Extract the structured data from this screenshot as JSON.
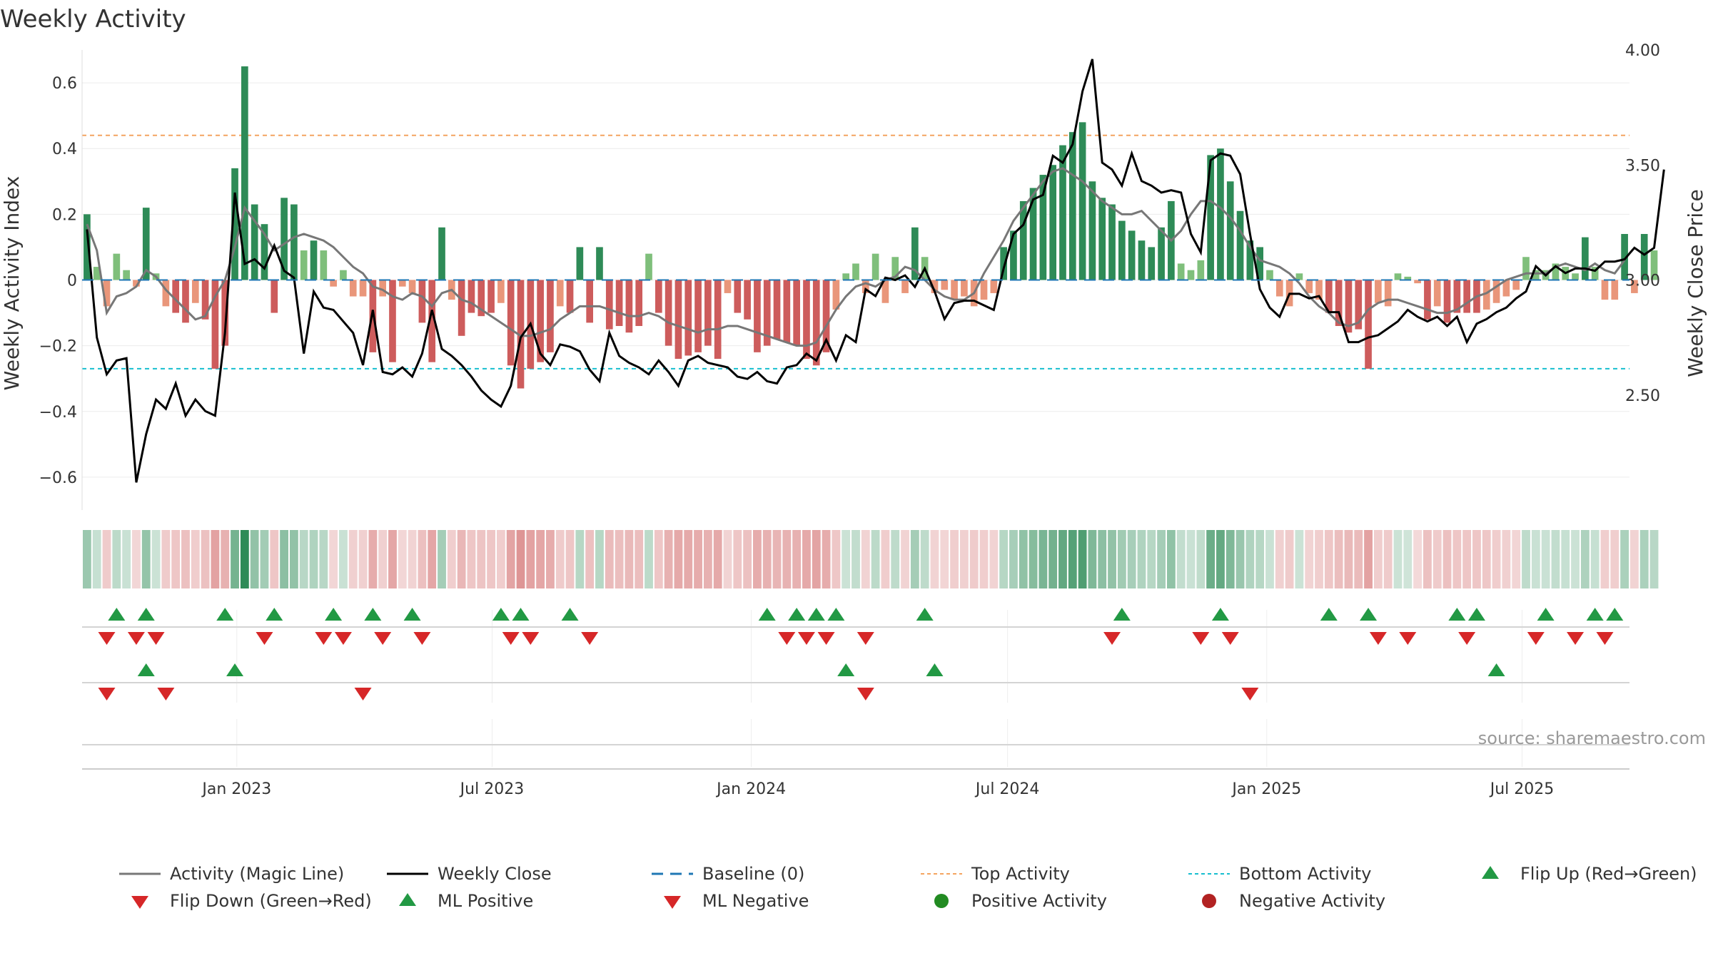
{
  "chart_data": {
    "type": "bar",
    "title": "Weekly Activity",
    "ylabel": "Weekly Activity Index",
    "y2label": "Weekly Close Price",
    "ylim": [
      -0.7,
      0.7
    ],
    "y2lim": [
      2.0,
      4.0
    ],
    "yticks": [
      0.6,
      0.4,
      0.2,
      0,
      -0.2,
      -0.4,
      -0.6
    ],
    "yticklabels": [
      "0.6",
      "0.4",
      "0.2",
      "0",
      "−0.2",
      "−0.4",
      "−0.6"
    ],
    "y2ticks": [
      4.0,
      3.5,
      3.0,
      2.5
    ],
    "y2ticklabels": [
      "4.00",
      "3.50",
      "3.00",
      "2.50"
    ],
    "x_range_weeks": [
      0,
      157
    ],
    "xticks": [
      {
        "label": "Jan 2023",
        "week": 15.2
      },
      {
        "label": "Jul 2023",
        "week": 41.1
      },
      {
        "label": "Jan 2024",
        "week": 67.4
      },
      {
        "label": "Jul 2024",
        "week": 93.4
      },
      {
        "label": "Jan 2025",
        "week": 119.7
      },
      {
        "label": "Jul 2025",
        "week": 145.6
      }
    ],
    "top_activity": 0.44,
    "bottom_activity": -0.27,
    "source": "source: sharemaestro.com",
    "colors": {
      "strong_green": "#2e8b57",
      "light_green": "#7fbf7b",
      "strong_red": "#cd5c5c",
      "light_red": "#e9967a",
      "magic_line": "#777777",
      "close_line": "#000000",
      "baseline": "#1f77b4",
      "top_line": "#f4a460",
      "bottom_line": "#17becf",
      "marker_up": "#229944",
      "marker_down": "#d62728",
      "pos_dot": "#228b22",
      "neg_dot": "#b22222"
    },
    "series": [
      {
        "name": "Weekly Activity Index",
        "type": "bar",
        "values": [
          0.2,
          0.04,
          -0.08,
          0.08,
          0.03,
          -0.02,
          0.22,
          0.02,
          -0.08,
          -0.1,
          -0.13,
          -0.07,
          -0.12,
          -0.27,
          -0.2,
          0.34,
          0.65,
          0.23,
          0.17,
          -0.1,
          0.25,
          0.23,
          0.09,
          0.12,
          0.09,
          -0.02,
          0.03,
          -0.05,
          -0.05,
          -0.22,
          -0.05,
          -0.25,
          -0.02,
          -0.04,
          -0.13,
          -0.25,
          0.16,
          -0.06,
          -0.17,
          -0.1,
          -0.11,
          -0.1,
          -0.07,
          -0.26,
          -0.33,
          -0.27,
          -0.25,
          -0.22,
          -0.08,
          -0.1,
          0.1,
          -0.13,
          0.1,
          -0.15,
          -0.14,
          -0.16,
          -0.14,
          0.08,
          -0.1,
          -0.2,
          -0.24,
          -0.23,
          -0.22,
          -0.2,
          -0.24,
          -0.04,
          -0.1,
          -0.12,
          -0.22,
          -0.2,
          -0.18,
          -0.19,
          -0.2,
          -0.24,
          -0.26,
          -0.22,
          -0.09,
          0.02,
          0.05,
          -0.04,
          0.08,
          -0.07,
          0.07,
          -0.04,
          0.16,
          0.07,
          -0.04,
          -0.03,
          -0.06,
          -0.05,
          -0.08,
          -0.06,
          -0.04,
          0.1,
          0.15,
          0.24,
          0.28,
          0.32,
          0.35,
          0.41,
          0.45,
          0.48,
          0.3,
          0.25,
          0.23,
          0.18,
          0.15,
          0.12,
          0.1,
          0.16,
          0.24,
          0.05,
          0.03,
          0.06,
          0.38,
          0.4,
          0.3,
          0.21,
          0.12,
          0.1,
          0.03,
          -0.05,
          -0.08,
          0.02,
          -0.04,
          -0.06,
          -0.1,
          -0.14,
          -0.16,
          -0.15,
          -0.27,
          -0.07,
          -0.08,
          0.02,
          0.01,
          -0.01,
          -0.12,
          -0.08,
          -0.13,
          -0.1,
          -0.1,
          -0.1,
          -0.09,
          -0.07,
          -0.05,
          -0.03,
          0.07,
          0.03,
          0.03,
          0.05,
          0.04,
          0.02,
          0.13,
          0.04,
          -0.06,
          -0.06,
          0.14,
          -0.04,
          0.14,
          0.09
        ]
      },
      {
        "name": "Activity (Magic Line)",
        "type": "line",
        "values": [
          0.17,
          0.09,
          -0.1,
          -0.05,
          -0.04,
          -0.02,
          0.03,
          0.01,
          -0.03,
          -0.06,
          -0.09,
          -0.12,
          -0.11,
          -0.05,
          0.0,
          0.1,
          0.22,
          0.18,
          0.14,
          0.09,
          0.11,
          0.13,
          0.14,
          0.13,
          0.12,
          0.1,
          0.07,
          0.04,
          0.02,
          -0.02,
          -0.03,
          -0.05,
          -0.06,
          -0.04,
          -0.05,
          -0.08,
          -0.04,
          -0.03,
          -0.06,
          -0.07,
          -0.09,
          -0.11,
          -0.13,
          -0.15,
          -0.17,
          -0.17,
          -0.16,
          -0.15,
          -0.12,
          -0.1,
          -0.08,
          -0.08,
          -0.08,
          -0.09,
          -0.1,
          -0.11,
          -0.11,
          -0.1,
          -0.11,
          -0.13,
          -0.14,
          -0.15,
          -0.16,
          -0.15,
          -0.15,
          -0.14,
          -0.14,
          -0.15,
          -0.16,
          -0.17,
          -0.18,
          -0.19,
          -0.2,
          -0.2,
          -0.19,
          -0.14,
          -0.09,
          -0.05,
          -0.02,
          -0.01,
          -0.02,
          0.0,
          0.01,
          0.04,
          0.03,
          0.0,
          -0.03,
          -0.05,
          -0.06,
          -0.06,
          -0.04,
          0.02,
          0.07,
          0.12,
          0.18,
          0.22,
          0.26,
          0.3,
          0.33,
          0.34,
          0.32,
          0.3,
          0.27,
          0.24,
          0.22,
          0.2,
          0.2,
          0.21,
          0.18,
          0.15,
          0.12,
          0.15,
          0.2,
          0.24,
          0.24,
          0.22,
          0.19,
          0.15,
          0.1,
          0.06,
          0.05,
          0.04,
          0.02,
          -0.01,
          -0.05,
          -0.08,
          -0.1,
          -0.13,
          -0.14,
          -0.13,
          -0.09,
          -0.07,
          -0.06,
          -0.06,
          -0.07,
          -0.08,
          -0.09,
          -0.1,
          -0.1,
          -0.09,
          -0.07,
          -0.05,
          -0.04,
          -0.02,
          0.0,
          0.01,
          0.02,
          0.02,
          0.02,
          0.04,
          0.05,
          0.04,
          0.03,
          0.05,
          0.03,
          0.02,
          0.06
        ]
      },
      {
        "name": "Weekly Close",
        "type": "line",
        "axis": "right",
        "values": [
          3.22,
          2.75,
          2.59,
          2.65,
          2.66,
          2.12,
          2.33,
          2.48,
          2.44,
          2.55,
          2.41,
          2.48,
          2.43,
          2.41,
          2.77,
          3.38,
          3.07,
          3.09,
          3.05,
          3.15,
          3.04,
          3.01,
          2.68,
          2.95,
          2.88,
          2.87,
          2.82,
          2.77,
          2.63,
          2.87,
          2.6,
          2.59,
          2.62,
          2.58,
          2.68,
          2.87,
          2.7,
          2.67,
          2.63,
          2.58,
          2.52,
          2.48,
          2.45,
          2.54,
          2.75,
          2.81,
          2.68,
          2.63,
          2.72,
          2.71,
          2.69,
          2.61,
          2.56,
          2.77,
          2.67,
          2.64,
          2.62,
          2.59,
          2.65,
          2.6,
          2.54,
          2.65,
          2.67,
          2.64,
          2.63,
          2.62,
          2.58,
          2.57,
          2.6,
          2.56,
          2.55,
          2.62,
          2.63,
          2.68,
          2.65,
          2.74,
          2.65,
          2.76,
          2.73,
          2.96,
          2.93,
          3.01,
          3.0,
          3.02,
          2.97,
          3.05,
          2.95,
          2.83,
          2.9,
          2.91,
          2.91,
          2.89,
          2.87,
          3.05,
          3.2,
          3.24,
          3.35,
          3.37,
          3.54,
          3.51,
          3.59,
          3.82,
          3.96,
          3.51,
          3.48,
          3.41,
          3.55,
          3.43,
          3.41,
          3.38,
          3.39,
          3.38,
          3.2,
          3.12,
          3.52,
          3.55,
          3.54,
          3.46,
          3.2,
          2.96,
          2.88,
          2.84,
          2.94,
          2.94,
          2.92,
          2.93,
          2.86,
          2.86,
          2.73,
          2.73,
          2.75,
          2.76,
          2.79,
          2.82,
          2.87,
          2.84,
          2.82,
          2.84,
          2.8,
          2.84,
          2.73,
          2.81,
          2.83,
          2.86,
          2.88,
          2.92,
          2.95,
          3.06,
          3.02,
          3.06,
          3.03,
          3.05,
          3.05,
          3.04,
          3.08,
          3.08,
          3.09,
          3.14,
          3.11,
          3.14,
          3.48
        ]
      },
      {
        "name": "Flip Up (Red→Green)",
        "type": "marker",
        "weeks": [
          3,
          6,
          14,
          19,
          25,
          29,
          33,
          42,
          44,
          49,
          69,
          72,
          74,
          76,
          85,
          105,
          115,
          126,
          130,
          139,
          141,
          148,
          153,
          155
        ]
      },
      {
        "name": "Flip Down (Green→Red)",
        "type": "marker",
        "weeks": [
          2,
          5,
          7,
          18,
          24,
          26,
          30,
          34,
          43,
          45,
          51,
          71,
          73,
          75,
          79,
          104,
          113,
          116,
          131,
          134,
          140,
          147,
          151,
          154
        ]
      },
      {
        "name": "ML Positive",
        "type": "marker",
        "weeks": [
          6,
          15,
          77,
          86,
          143
        ]
      },
      {
        "name": "ML Negative",
        "type": "marker",
        "weeks": [
          2,
          8,
          28,
          79,
          118
        ]
      }
    ],
    "legend": [
      {
        "key": "magic",
        "label": "Activity (Magic Line)"
      },
      {
        "key": "close",
        "label": "Weekly Close"
      },
      {
        "key": "baseline",
        "label": "Baseline (0)"
      },
      {
        "key": "top",
        "label": "Top Activity"
      },
      {
        "key": "bottom",
        "label": "Bottom Activity"
      },
      {
        "key": "flipup",
        "label": "Flip Up (Red→Green)"
      },
      {
        "key": "flipdown",
        "label": "Flip Down (Green→Red)"
      },
      {
        "key": "mlpos",
        "label": "ML Positive"
      },
      {
        "key": "mlneg",
        "label": "ML Negative"
      },
      {
        "key": "posact",
        "label": "Positive Activity"
      },
      {
        "key": "negact",
        "label": "Negative Activity"
      }
    ]
  }
}
